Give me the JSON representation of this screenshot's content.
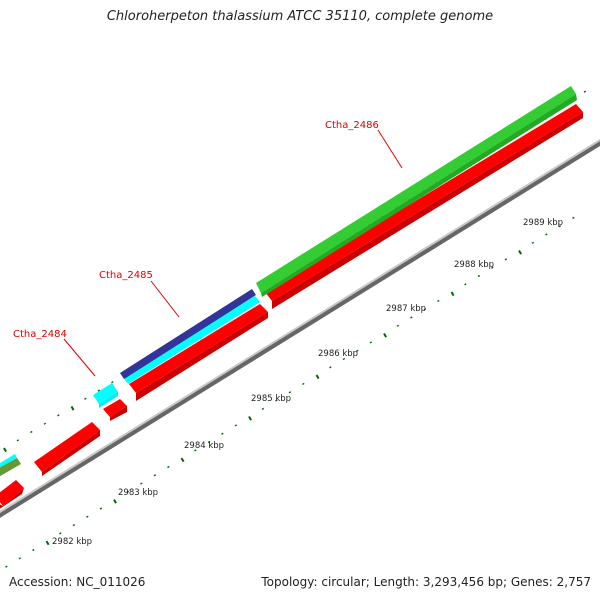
{
  "title": "Chloroherpeton thalassium ATCC 35110, complete genome",
  "footer": {
    "accession_label": "Accession: NC_011026",
    "stats_label": "Topology: circular; Length: 3,293,456 bp; Genes: 2,757"
  },
  "scale_unit": "kbp",
  "scale_ticks": [
    {
      "label": "2982 kbp"
    },
    {
      "label": "2983 kbp"
    },
    {
      "label": "2984 kbp"
    },
    {
      "label": "2985 kbp"
    },
    {
      "label": "2986 kbp"
    },
    {
      "label": "2987 kbp"
    },
    {
      "label": "2988 kbp"
    },
    {
      "label": "2989 kbp"
    }
  ],
  "gene_labels": [
    {
      "name": "Ctha_2484",
      "color": "#dd0000"
    },
    {
      "name": "Ctha_2485",
      "color": "#dd0000"
    },
    {
      "name": "Ctha_2486",
      "color": "#dd0000"
    }
  ],
  "colors": {
    "forward_cds": "#33cc33",
    "reverse_cds": "#ff0000",
    "cyan_feature": "#00ffff",
    "purple_feature": "#333399",
    "olive_feature": "#669933",
    "backbone": "#888888",
    "tick_marks": "#006600"
  }
}
